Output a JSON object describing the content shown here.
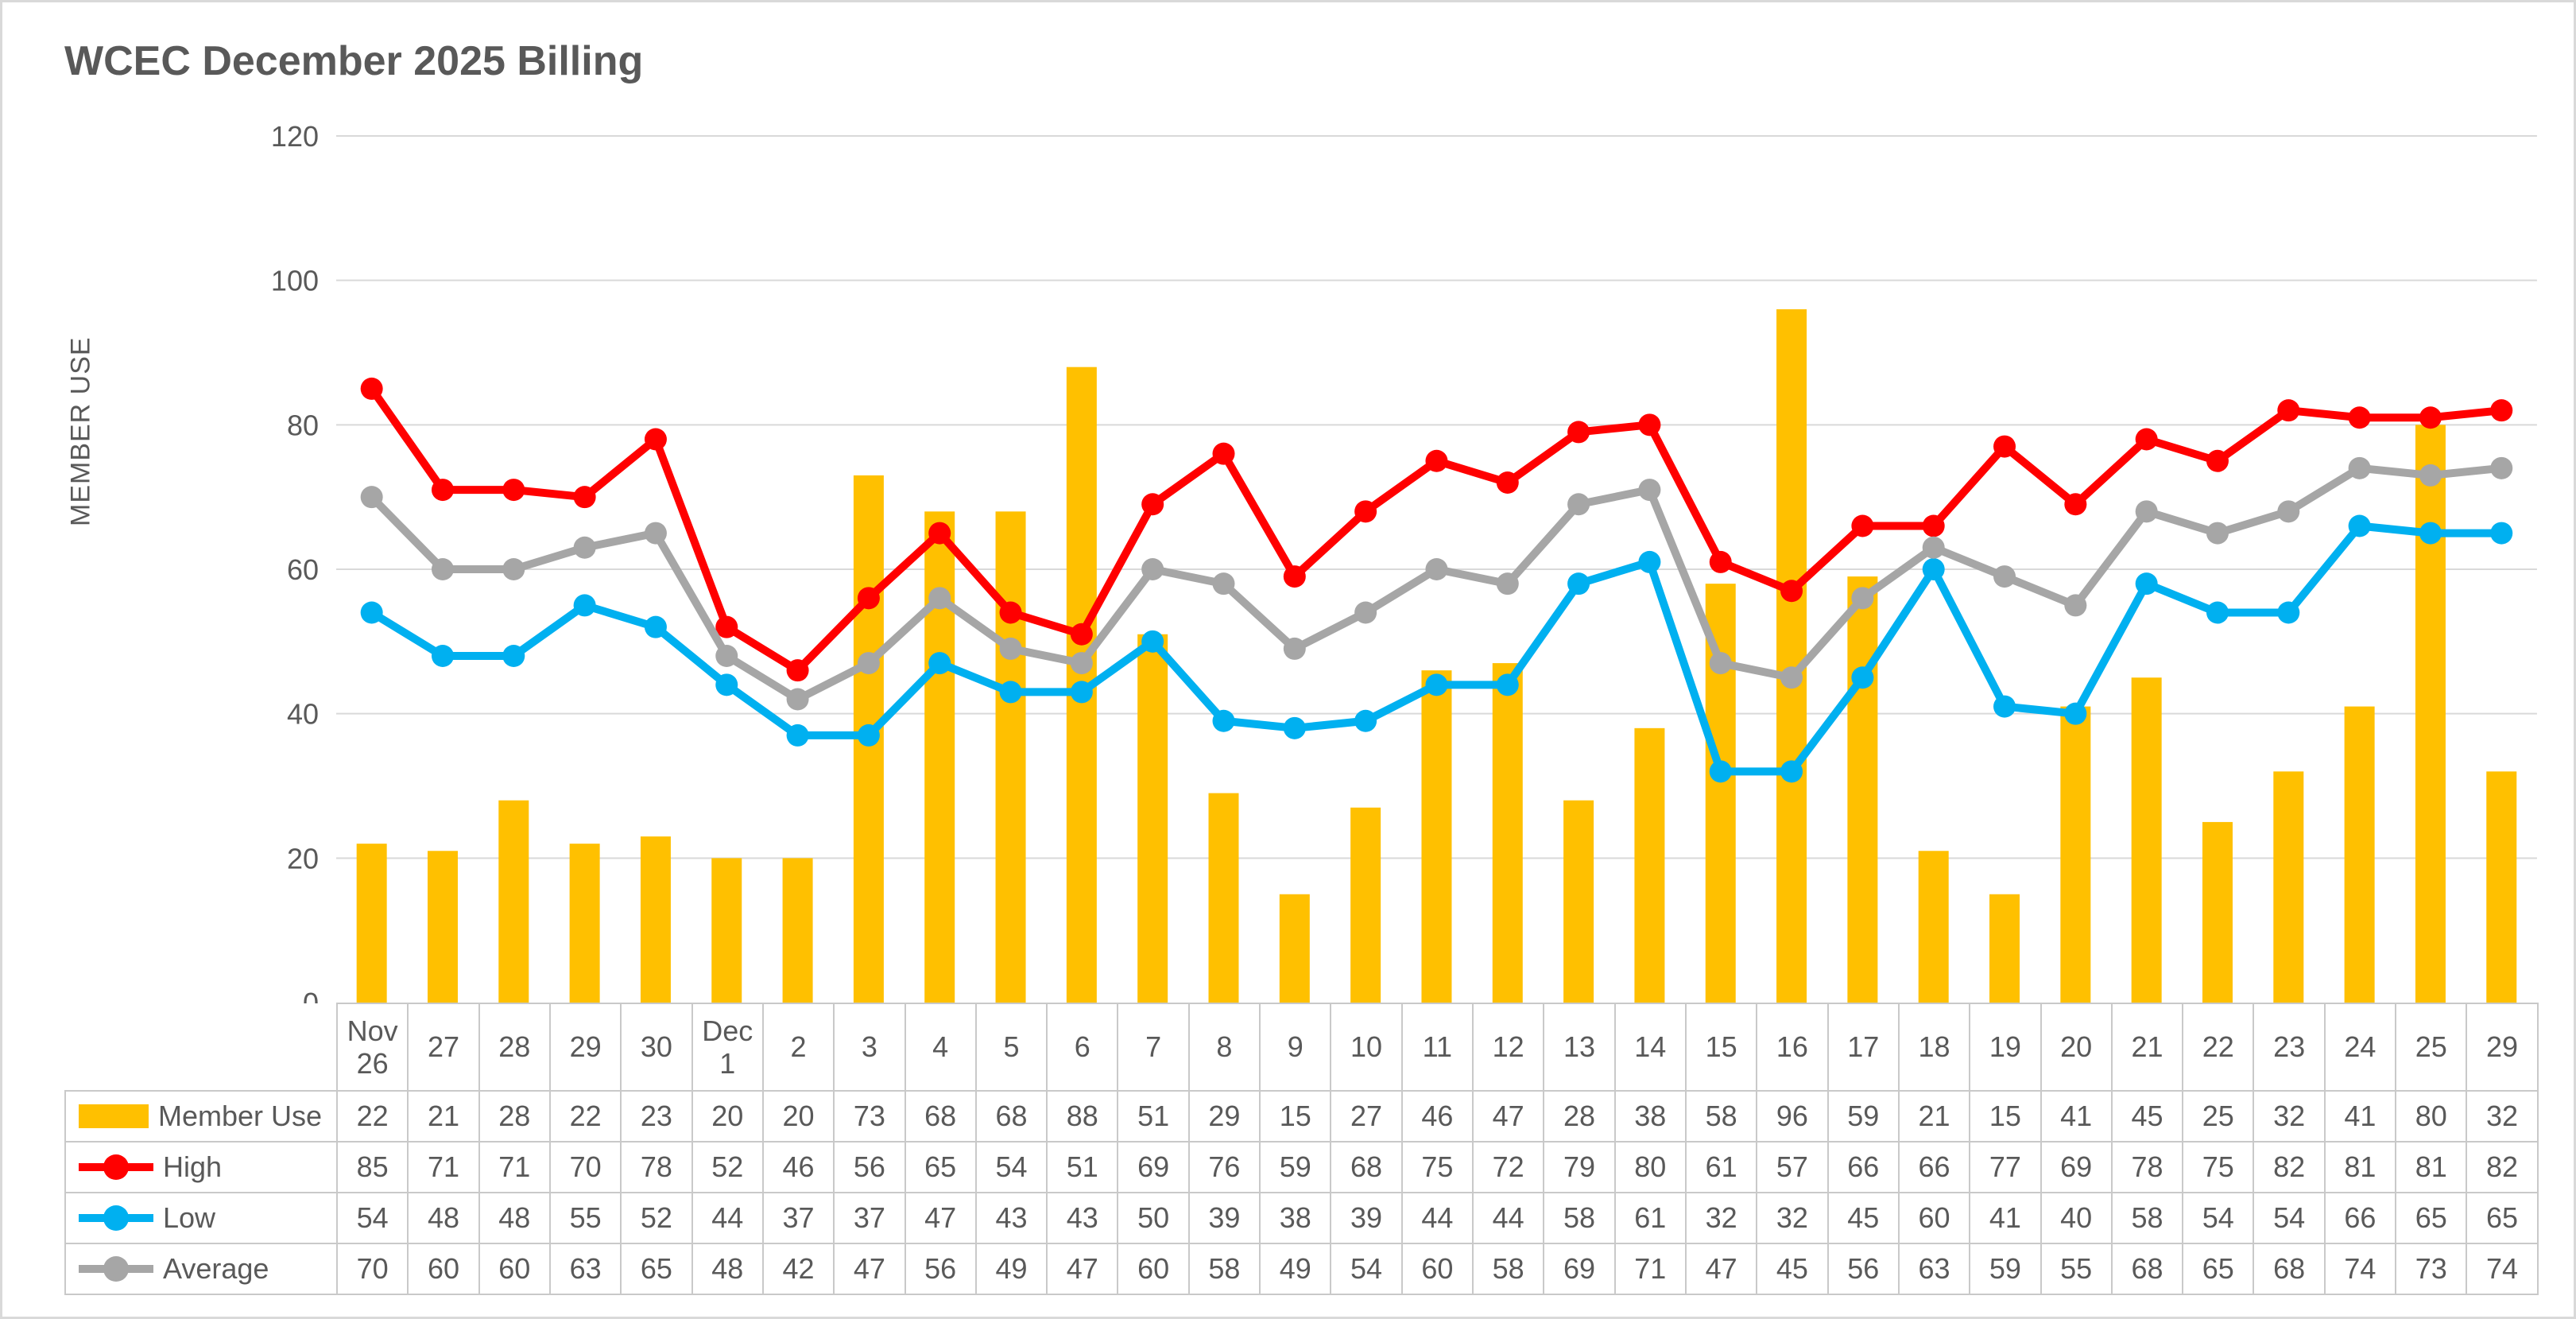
{
  "title": "WCEC December 2025 Billing",
  "colors": {
    "member_use": "#FFC000",
    "high": "#FF0000",
    "low": "#00B0F0",
    "average": "#A6A6A6",
    "grid": "#D9D9D9",
    "text": "#595959",
    "table_border": "#C9C9C9"
  },
  "chart_data": {
    "type": "bar",
    "subtype": "combo-bar-line",
    "title": "WCEC December 2025 Billing",
    "xlabel": "",
    "ylabel": "MEMBER USE",
    "ylim": [
      0,
      120
    ],
    "ytick_step": 20,
    "grid": true,
    "legend_position": "table-left",
    "categories": [
      "Nov 26",
      "27",
      "28",
      "29",
      "30",
      "Dec 1",
      "2",
      "3",
      "4",
      "5",
      "6",
      "7",
      "8",
      "9",
      "10",
      "11",
      "12",
      "13",
      "14",
      "15",
      "16",
      "17",
      "18",
      "19",
      "20",
      "21",
      "22",
      "23",
      "24",
      "25",
      "29"
    ],
    "series": [
      {
        "name": "Member Use",
        "type": "bar",
        "color": "#FFC000",
        "values": [
          22,
          21,
          28,
          22,
          23,
          20,
          20,
          73,
          68,
          68,
          88,
          51,
          29,
          15,
          27,
          46,
          47,
          28,
          38,
          58,
          96,
          59,
          21,
          15,
          41,
          45,
          25,
          32,
          41,
          80,
          32
        ]
      },
      {
        "name": "High",
        "type": "line",
        "color": "#FF0000",
        "values": [
          85,
          71,
          71,
          70,
          78,
          52,
          46,
          56,
          65,
          54,
          51,
          69,
          76,
          59,
          68,
          75,
          72,
          79,
          80,
          61,
          57,
          66,
          66,
          77,
          69,
          78,
          75,
          82,
          81,
          81,
          82
        ]
      },
      {
        "name": "Low",
        "type": "line",
        "color": "#00B0F0",
        "values": [
          54,
          48,
          48,
          55,
          52,
          44,
          37,
          37,
          47,
          43,
          43,
          50,
          39,
          38,
          39,
          44,
          44,
          58,
          61,
          32,
          32,
          45,
          60,
          41,
          40,
          58,
          54,
          54,
          66,
          65,
          65
        ]
      },
      {
        "name": "Average",
        "type": "line",
        "color": "#A6A6A6",
        "values": [
          70,
          60,
          60,
          63,
          65,
          48,
          42,
          47,
          56,
          49,
          47,
          60,
          58,
          49,
          54,
          60,
          58,
          69,
          71,
          47,
          45,
          56,
          63,
          59,
          55,
          68,
          65,
          68,
          74,
          73,
          74
        ]
      }
    ]
  }
}
